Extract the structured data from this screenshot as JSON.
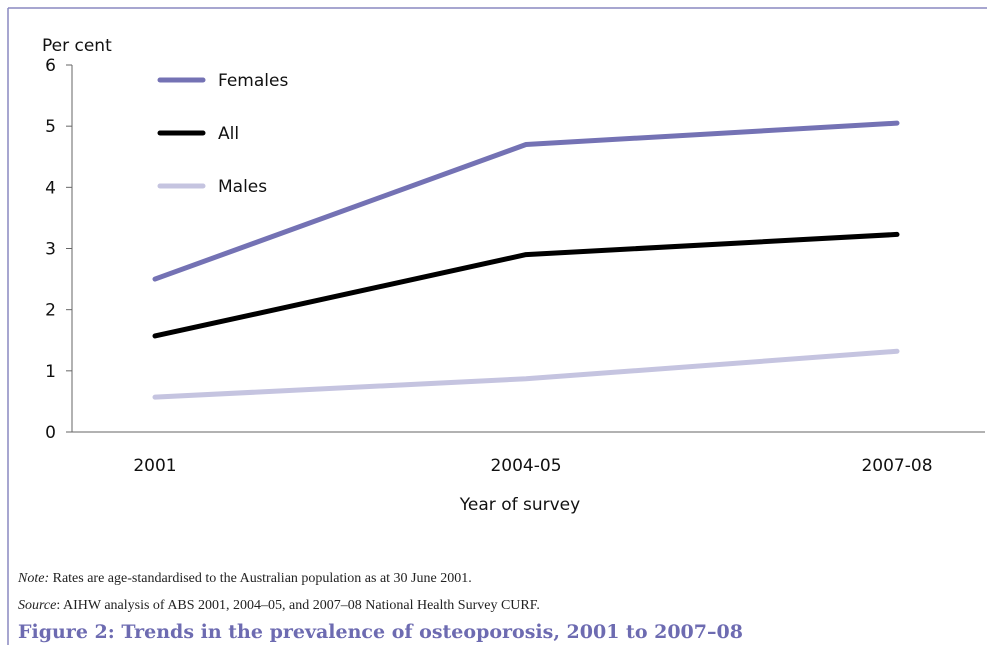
{
  "chart_data": {
    "type": "line",
    "y_label": "Per cent",
    "x_label": "Year of survey",
    "categories": [
      "2001",
      "2004-05",
      "2007-08"
    ],
    "series": [
      {
        "name": "Females",
        "color": "#7472b4",
        "values": [
          2.5,
          4.7,
          5.05
        ]
      },
      {
        "name": "All",
        "color": "#000000",
        "values": [
          1.57,
          2.9,
          3.23
        ]
      },
      {
        "name": "Males",
        "color": "#c5c4e0",
        "values": [
          0.57,
          0.87,
          1.32
        ]
      }
    ],
    "ylim": [
      0,
      6
    ],
    "yticks": [
      0,
      1,
      2,
      3,
      4,
      5,
      6
    ],
    "note_label": "Note:",
    "note": " Rates are age-standardised to the Australian population as at 30 June 2001.",
    "source_label": "Source",
    "source": ": AIHW analysis of ABS 2001, 2004–05, and 2007–08 National Health Survey CURF.",
    "caption": "Figure 2: Trends in the prevalence of osteoporosis, 2001 to 2007–08"
  }
}
